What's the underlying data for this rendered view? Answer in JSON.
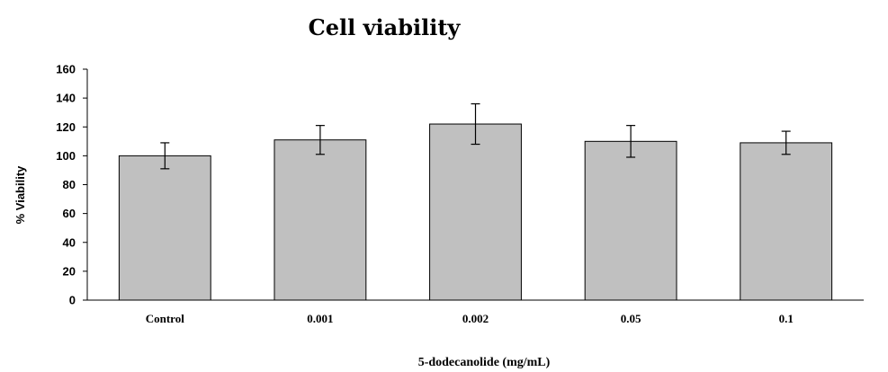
{
  "chart_data": {
    "type": "bar",
    "title": "Cell viability",
    "xlabel": "5-dodecanolide (mg/mL)",
    "ylabel": "% Viability",
    "categories": [
      "Control",
      "0.001",
      "0.002",
      "0.05",
      "0.1"
    ],
    "values": [
      100,
      111,
      122,
      110,
      109
    ],
    "error": [
      9,
      10,
      14,
      11,
      8
    ],
    "ylim": [
      0,
      160
    ],
    "yticks": [
      0,
      20,
      40,
      60,
      80,
      100,
      120,
      140,
      160
    ],
    "grid": false,
    "legend": "none",
    "colors": {
      "bar_fill": "#c0c0c0",
      "bar_stroke": "#000000",
      "axis": "#000000"
    }
  }
}
